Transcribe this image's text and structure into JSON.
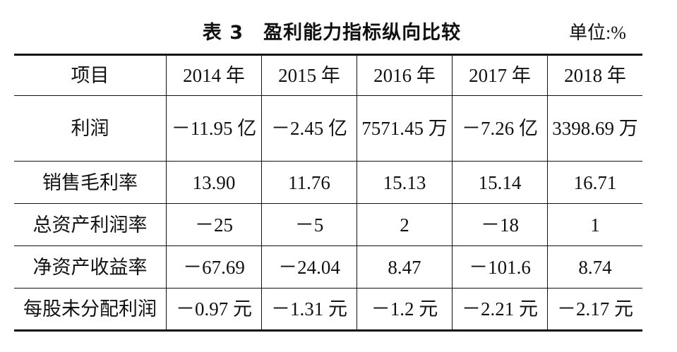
{
  "header": {
    "title": "表 3　盈利能力指标纵向比较",
    "unit": "单位:%"
  },
  "table": {
    "columns": [
      "项目",
      "2014 年",
      "2015 年",
      "2016 年",
      "2017 年",
      "2018 年"
    ],
    "rows": [
      [
        "利润",
        "－11.95 亿",
        "－2.45 亿",
        "7571.45 万",
        "－7.26 亿",
        "3398.69 万"
      ],
      [
        "销售毛利率",
        "13.90",
        "11.76",
        "15.13",
        "15.14",
        "16.71"
      ],
      [
        "总资产利润率",
        "－25",
        "－5",
        "2",
        "－18",
        "1"
      ],
      [
        "净资产收益率",
        "－67.69",
        "－24.04",
        "8.47",
        "－101.6",
        "8.74"
      ],
      [
        "每股未分配利润",
        "－0.97 元",
        "－1.31 元",
        "－1.2 元",
        "－2.21 元",
        "－2.17 元"
      ]
    ]
  }
}
